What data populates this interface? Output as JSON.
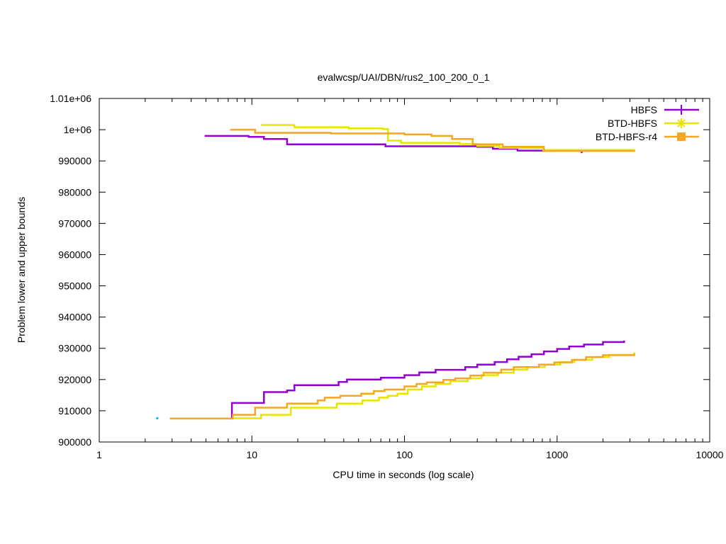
{
  "chart_data": {
    "type": "line",
    "title": "evalwcsp/UAI/DBN/rus2_100_200_0_1",
    "xlabel": "CPU time in seconds (log scale)",
    "ylabel": "Problem lower and upper bounds",
    "x_scale": "log",
    "xlim": [
      1,
      10000
    ],
    "ylim": [
      900000,
      1010000
    ],
    "x_ticks": [
      1,
      10,
      100,
      1000,
      10000
    ],
    "x_tick_labels": [
      "1",
      "10",
      "100",
      "1000",
      "10000"
    ],
    "y_ticks": [
      900000,
      910000,
      920000,
      930000,
      940000,
      950000,
      960000,
      970000,
      980000,
      990000,
      1000000,
      1010000
    ],
    "y_tick_labels": [
      "900000",
      "910000",
      "920000",
      "930000",
      "940000",
      "950000",
      "960000",
      "970000",
      "980000",
      "990000",
      "1e+06",
      "1.01e+06"
    ],
    "grid": false,
    "legend_position": "top-right",
    "series": [
      {
        "name": "HBFS",
        "color": "#9400d3",
        "marker": "plus",
        "upper": [
          [
            4.9,
            998000
          ],
          [
            9.5,
            997700
          ],
          [
            12,
            997000
          ],
          [
            17,
            995300
          ],
          [
            75,
            994700
          ],
          [
            300,
            994500
          ],
          [
            380,
            993900
          ],
          [
            550,
            993300
          ],
          [
            1150,
            993300
          ]
        ],
        "upper_end_mark": [
          1450,
          992500
        ],
        "lower": [
          [
            7.3,
            907500
          ],
          [
            7.4,
            912500
          ],
          [
            12,
            916000
          ],
          [
            17,
            916500
          ],
          [
            19,
            918200
          ],
          [
            37,
            919200
          ],
          [
            42,
            920000
          ],
          [
            70,
            920600
          ],
          [
            100,
            921400
          ],
          [
            125,
            922300
          ],
          [
            160,
            923100
          ],
          [
            250,
            924000
          ],
          [
            300,
            924800
          ],
          [
            390,
            925600
          ],
          [
            470,
            926500
          ],
          [
            560,
            927300
          ],
          [
            680,
            928100
          ],
          [
            820,
            929000
          ],
          [
            1000,
            929800
          ],
          [
            1200,
            930600
          ],
          [
            1500,
            931200
          ],
          [
            2000,
            932000
          ],
          [
            2750,
            932500
          ]
        ]
      },
      {
        "name": "BTD-HBFS",
        "color": "#e5e500",
        "marker": "star",
        "upper": [
          [
            11.5,
            1001500
          ],
          [
            19,
            1000800
          ],
          [
            43,
            1000400
          ],
          [
            72,
            1000200
          ],
          [
            78,
            996500
          ],
          [
            95,
            995800
          ],
          [
            230,
            995400
          ],
          [
            300,
            994800
          ],
          [
            420,
            994200
          ],
          [
            810,
            993500
          ],
          [
            3200,
            993200
          ]
        ],
        "lower": [
          [
            7.5,
            907600
          ],
          [
            11.5,
            908700
          ],
          [
            18,
            911000
          ],
          [
            36,
            912300
          ],
          [
            53,
            913300
          ],
          [
            68,
            914200
          ],
          [
            78,
            914800
          ],
          [
            90,
            915500
          ],
          [
            105,
            916800
          ],
          [
            130,
            917800
          ],
          [
            160,
            918600
          ],
          [
            200,
            919500
          ],
          [
            260,
            920400
          ],
          [
            320,
            921400
          ],
          [
            410,
            922200
          ],
          [
            520,
            923200
          ],
          [
            640,
            924000
          ],
          [
            830,
            924800
          ],
          [
            1050,
            925600
          ],
          [
            1300,
            926300
          ],
          [
            1700,
            927200
          ],
          [
            2200,
            927900
          ],
          [
            3200,
            928700
          ]
        ]
      },
      {
        "name": "BTD-HBFS-r4",
        "color": "#f5a623",
        "marker": "square",
        "upper": [
          [
            7.2,
            1000000
          ],
          [
            10.5,
            999000
          ],
          [
            33,
            998800
          ],
          [
            100,
            998500
          ],
          [
            150,
            998000
          ],
          [
            205,
            997000
          ],
          [
            280,
            995300
          ],
          [
            440,
            994500
          ],
          [
            820,
            993200
          ],
          [
            3200,
            992900
          ]
        ],
        "lower": [
          [
            2.9,
            907500
          ],
          [
            7.5,
            908700
          ],
          [
            10.5,
            911000
          ],
          [
            17,
            912300
          ],
          [
            27,
            913300
          ],
          [
            30,
            914200
          ],
          [
            38,
            914800
          ],
          [
            52,
            915500
          ],
          [
            63,
            916300
          ],
          [
            74,
            916800
          ],
          [
            100,
            917800
          ],
          [
            120,
            918600
          ],
          [
            140,
            919100
          ],
          [
            180,
            919900
          ],
          [
            215,
            920400
          ],
          [
            270,
            921300
          ],
          [
            330,
            922200
          ],
          [
            430,
            923200
          ],
          [
            520,
            924000
          ],
          [
            760,
            924800
          ],
          [
            960,
            925500
          ],
          [
            1250,
            926300
          ],
          [
            1550,
            927200
          ],
          [
            2000,
            927800
          ],
          [
            3200,
            928300
          ]
        ]
      }
    ],
    "extra_points": [
      {
        "x": 2.4,
        "y": 907600,
        "color": "#00bfff"
      }
    ]
  }
}
